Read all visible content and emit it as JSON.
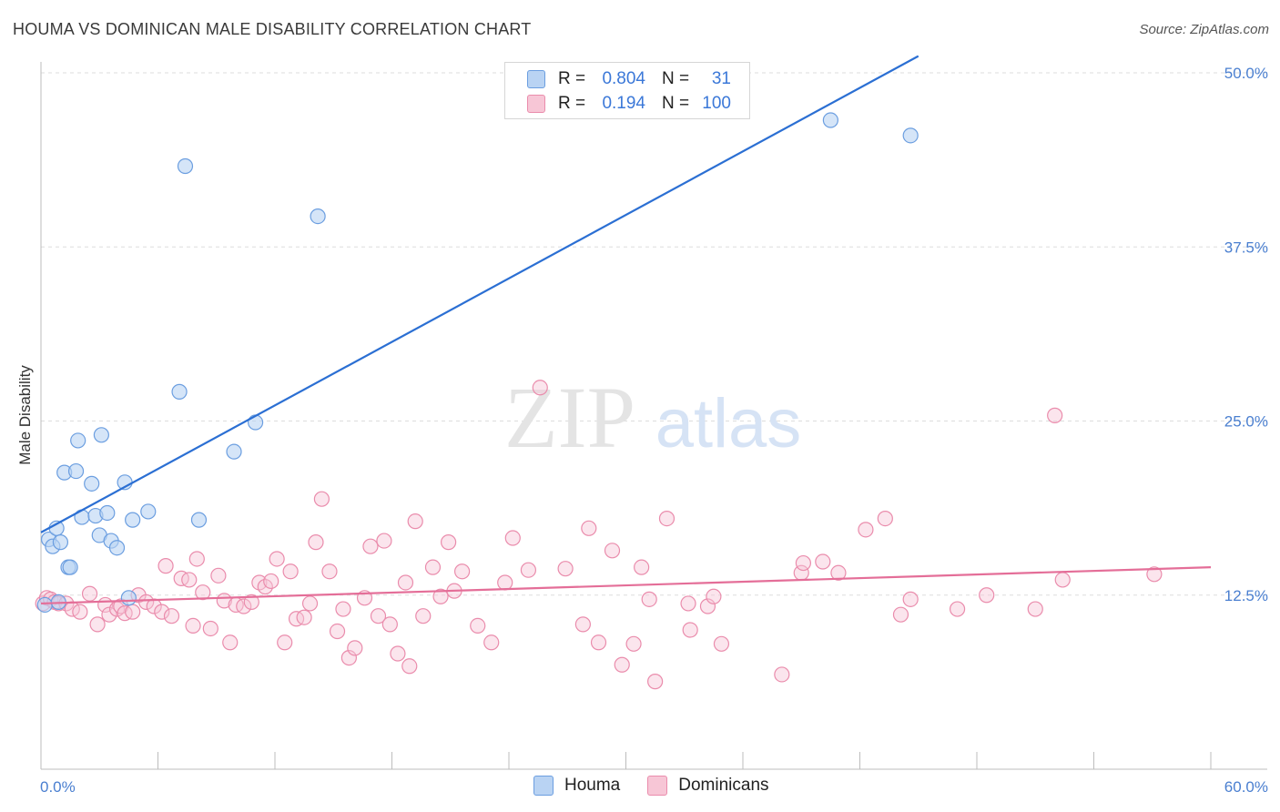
{
  "title": "HOUMA VS DOMINICAN MALE DISABILITY CORRELATION CHART",
  "source": "Source: ZipAtlas.com",
  "watermark": {
    "zip": "ZIP",
    "atlas": "atlas"
  },
  "legend": {
    "rows": [
      {
        "r_label": "R =",
        "r_value": "0.804",
        "n_label": "N =",
        "n_value": "31"
      },
      {
        "r_label": "R =",
        "r_value": "0.194",
        "n_label": "N =",
        "n_value": "100"
      }
    ]
  },
  "bottom_legend": {
    "houma": "Houma",
    "dominicans": "Dominicans"
  },
  "colors": {
    "houma_fill": "#b9d3f3",
    "houma_stroke": "#6b9ee0",
    "houma_line": "#2b6fd3",
    "dom_fill": "#f7c6d6",
    "dom_stroke": "#ea8cac",
    "dom_line": "#e46e98",
    "tick": "#4a7fd0",
    "grid": "#dddddd"
  },
  "chart_data": {
    "type": "scatter",
    "title": "HOUMA VS DOMINICAN MALE DISABILITY CORRELATION CHART",
    "xlabel": "",
    "ylabel": "Male Disability",
    "xlim": [
      0,
      60
    ],
    "ylim": [
      0,
      50
    ],
    "x_tick_labels": [
      {
        "value": 0,
        "label": "0.0%"
      },
      {
        "value": 60,
        "label": "60.0%"
      }
    ],
    "y_tick_labels": [
      {
        "value": 12.5,
        "label": "12.5%"
      },
      {
        "value": 25,
        "label": "25.0%"
      },
      {
        "value": 37.5,
        "label": "37.5%"
      },
      {
        "value": 50,
        "label": "50.0%"
      }
    ],
    "series": [
      {
        "name": "Houma",
        "r": 0.804,
        "n": 31,
        "trend": {
          "x": [
            0.0,
            45.0
          ],
          "y": [
            17.0,
            51.2
          ]
        },
        "points": [
          [
            0.2,
            11.8
          ],
          [
            0.4,
            16.5
          ],
          [
            0.6,
            16.0
          ],
          [
            0.8,
            17.3
          ],
          [
            1.0,
            16.3
          ],
          [
            1.2,
            21.3
          ],
          [
            1.4,
            14.5
          ],
          [
            1.5,
            14.5
          ],
          [
            1.8,
            21.4
          ],
          [
            1.9,
            23.6
          ],
          [
            2.1,
            18.1
          ],
          [
            2.6,
            20.5
          ],
          [
            2.8,
            18.2
          ],
          [
            3.0,
            16.8
          ],
          [
            3.1,
            24.0
          ],
          [
            3.4,
            18.4
          ],
          [
            3.6,
            16.4
          ],
          [
            3.9,
            15.9
          ],
          [
            4.3,
            20.6
          ],
          [
            4.5,
            12.3
          ],
          [
            4.7,
            17.9
          ],
          [
            5.5,
            18.5
          ],
          [
            7.1,
            27.1
          ],
          [
            7.4,
            43.3
          ],
          [
            8.1,
            17.9
          ],
          [
            9.9,
            22.8
          ],
          [
            11.0,
            24.9
          ],
          [
            14.2,
            39.7
          ],
          [
            40.5,
            46.6
          ],
          [
            44.6,
            45.5
          ],
          [
            0.9,
            12.0
          ]
        ]
      },
      {
        "name": "Dominicans",
        "r": 0.194,
        "n": 100,
        "trend": {
          "x": [
            0.0,
            60.0
          ],
          "y": [
            11.9,
            14.5
          ]
        },
        "points": [
          [
            0.1,
            11.9
          ],
          [
            0.3,
            12.3
          ],
          [
            0.5,
            12.2
          ],
          [
            0.7,
            12.0
          ],
          [
            0.9,
            11.9
          ],
          [
            1.3,
            11.9
          ],
          [
            1.6,
            11.5
          ],
          [
            2.0,
            11.3
          ],
          [
            2.5,
            12.6
          ],
          [
            2.9,
            10.4
          ],
          [
            3.3,
            11.8
          ],
          [
            3.5,
            11.1
          ],
          [
            3.9,
            11.5
          ],
          [
            4.1,
            11.7
          ],
          [
            4.3,
            11.2
          ],
          [
            4.7,
            11.3
          ],
          [
            5.0,
            12.5
          ],
          [
            5.4,
            12.0
          ],
          [
            5.8,
            11.7
          ],
          [
            6.2,
            11.3
          ],
          [
            6.4,
            14.6
          ],
          [
            6.7,
            11.0
          ],
          [
            7.2,
            13.7
          ],
          [
            7.6,
            13.6
          ],
          [
            7.8,
            10.3
          ],
          [
            8.0,
            15.1
          ],
          [
            8.3,
            12.7
          ],
          [
            8.7,
            10.1
          ],
          [
            9.1,
            13.9
          ],
          [
            9.4,
            12.1
          ],
          [
            9.7,
            9.1
          ],
          [
            10.0,
            11.8
          ],
          [
            10.4,
            11.7
          ],
          [
            10.8,
            12.0
          ],
          [
            11.2,
            13.4
          ],
          [
            11.5,
            13.1
          ],
          [
            11.8,
            13.5
          ],
          [
            12.1,
            15.1
          ],
          [
            12.5,
            9.1
          ],
          [
            12.8,
            14.2
          ],
          [
            13.1,
            10.8
          ],
          [
            13.5,
            10.9
          ],
          [
            13.8,
            11.9
          ],
          [
            14.1,
            16.3
          ],
          [
            14.4,
            19.4
          ],
          [
            14.8,
            14.2
          ],
          [
            15.2,
            9.9
          ],
          [
            15.5,
            11.5
          ],
          [
            15.8,
            8.0
          ],
          [
            16.1,
            8.7
          ],
          [
            16.6,
            12.3
          ],
          [
            16.9,
            16.0
          ],
          [
            17.3,
            11.0
          ],
          [
            17.6,
            16.4
          ],
          [
            17.9,
            10.4
          ],
          [
            18.3,
            8.3
          ],
          [
            18.7,
            13.4
          ],
          [
            18.9,
            7.4
          ],
          [
            19.2,
            17.8
          ],
          [
            19.6,
            11.0
          ],
          [
            20.1,
            14.5
          ],
          [
            20.5,
            12.4
          ],
          [
            20.9,
            16.3
          ],
          [
            21.2,
            12.8
          ],
          [
            21.6,
            14.2
          ],
          [
            22.4,
            10.3
          ],
          [
            23.1,
            9.1
          ],
          [
            23.8,
            13.4
          ],
          [
            24.2,
            16.6
          ],
          [
            25.0,
            14.3
          ],
          [
            25.6,
            27.4
          ],
          [
            26.9,
            14.4
          ],
          [
            27.8,
            10.4
          ],
          [
            28.1,
            17.3
          ],
          [
            28.6,
            9.1
          ],
          [
            29.3,
            15.7
          ],
          [
            29.8,
            7.5
          ],
          [
            30.4,
            9.0
          ],
          [
            30.8,
            14.5
          ],
          [
            31.2,
            12.2
          ],
          [
            31.5,
            6.3
          ],
          [
            32.1,
            18.0
          ],
          [
            33.2,
            11.9
          ],
          [
            33.3,
            10.0
          ],
          [
            34.2,
            11.7
          ],
          [
            34.5,
            12.4
          ],
          [
            34.9,
            9.0
          ],
          [
            38.0,
            6.8
          ],
          [
            39.0,
            14.1
          ],
          [
            39.1,
            14.8
          ],
          [
            40.1,
            14.9
          ],
          [
            40.9,
            14.1
          ],
          [
            42.3,
            17.2
          ],
          [
            43.3,
            18.0
          ],
          [
            44.1,
            11.1
          ],
          [
            44.6,
            12.2
          ],
          [
            47.0,
            11.5
          ],
          [
            48.5,
            12.5
          ],
          [
            51.0,
            11.5
          ],
          [
            52.0,
            25.4
          ],
          [
            52.4,
            13.6
          ],
          [
            57.1,
            14.0
          ]
        ]
      }
    ]
  }
}
